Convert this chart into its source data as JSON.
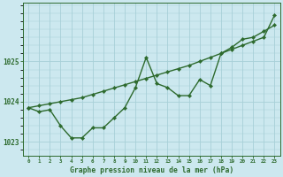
{
  "title": "Graphe pression niveau de la mer (hPa)",
  "background_color": "#cce8ef",
  "grid_color": "#a8d0d8",
  "line_color": "#2d6a2d",
  "x_labels": [
    "0",
    "1",
    "2",
    "3",
    "4",
    "5",
    "6",
    "7",
    "8",
    "9",
    "10",
    "11",
    "12",
    "13",
    "14",
    "15",
    "16",
    "17",
    "18",
    "19",
    "20",
    "21",
    "22",
    "23"
  ],
  "x_values": [
    0,
    1,
    2,
    3,
    4,
    5,
    6,
    7,
    8,
    9,
    10,
    11,
    12,
    13,
    14,
    15,
    16,
    17,
    18,
    19,
    20,
    21,
    22,
    23
  ],
  "line1": [
    1023.85,
    1023.75,
    1023.8,
    1023.4,
    1023.1,
    1023.1,
    1023.35,
    1023.35,
    1023.6,
    1023.85,
    1024.35,
    1025.1,
    1024.45,
    1024.35,
    1024.15,
    1024.15,
    1024.55,
    1024.4,
    1025.2,
    1025.35,
    1025.55,
    1025.6,
    1025.75,
    1025.9
  ],
  "line2": [
    1023.85,
    1023.9,
    1023.95,
    1024.0,
    1024.05,
    1024.1,
    1024.18,
    1024.26,
    1024.34,
    1024.42,
    1024.5,
    1024.58,
    1024.66,
    1024.74,
    1024.82,
    1024.9,
    1025.0,
    1025.1,
    1025.2,
    1025.3,
    1025.4,
    1025.5,
    1025.6,
    1026.15
  ],
  "ylim": [
    1022.65,
    1026.45
  ],
  "yticks": [
    1023,
    1024,
    1025
  ],
  "markersize": 2.2,
  "linewidth": 1.0
}
